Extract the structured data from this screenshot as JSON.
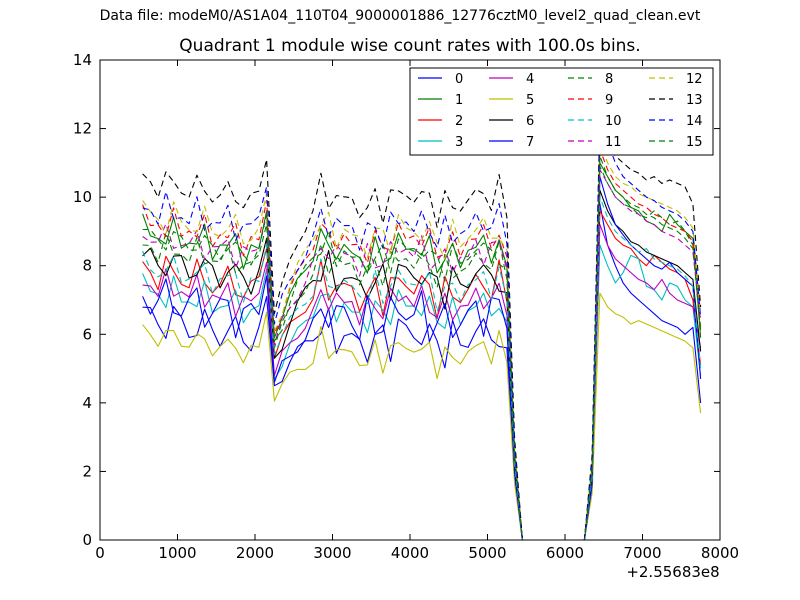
{
  "figure": {
    "suptitle": "Data file: modeM0/AS1A04_110T04_9000001886_12776cztM0_level2_quad_clean.evt"
  },
  "chart_data": {
    "type": "line",
    "title": "Quadrant 1 module wise count rates with 100.0s bins.",
    "xlabel": "",
    "ylabel": "",
    "x_offset_label": "+2.55683e8",
    "xlim": [
      0,
      8000
    ],
    "ylim": [
      0,
      14
    ],
    "xticks": [
      0,
      1000,
      2000,
      3000,
      4000,
      5000,
      6000,
      7000,
      8000
    ],
    "yticks": [
      0,
      2,
      4,
      6,
      8,
      10,
      12,
      14
    ],
    "legend_position": "top-right",
    "legend_columns": 4,
    "x": [
      550,
      650,
      750,
      850,
      950,
      1050,
      1150,
      1250,
      1350,
      1450,
      1550,
      1650,
      1750,
      1850,
      1950,
      2050,
      2150,
      2250,
      2350,
      2450,
      2550,
      2650,
      2750,
      2850,
      2950,
      3050,
      3150,
      3250,
      3350,
      3450,
      3550,
      3650,
      3750,
      3850,
      3950,
      4050,
      4150,
      4250,
      4350,
      4450,
      4550,
      4650,
      4750,
      4850,
      4950,
      5050,
      5150,
      5250,
      5350,
      5450,
      5550,
      5650,
      5750,
      5850,
      5950,
      6050,
      6150,
      6250,
      6350,
      6450,
      6550,
      6650,
      6750,
      6850,
      6950,
      7050,
      7150,
      7250,
      7350,
      7450,
      7550,
      7650,
      7750
    ],
    "gap_start_index": 49,
    "gap_end_index": 57,
    "series": [
      {
        "name": "0",
        "color": "#0000ff",
        "dash": false,
        "base": 5.9,
        "amp": 0.5,
        "phase": 0.3,
        "dip": 4.5,
        "flare": [
          9.8,
          8.6,
          8.0,
          7.5,
          7.2,
          7.0,
          6.8,
          6.6,
          6.4,
          6.3,
          6.2,
          6.0,
          6.2,
          4.0
        ]
      },
      {
        "name": "1",
        "color": "#008000",
        "dash": false,
        "base": 8.4,
        "amp": 0.35,
        "phase": 1.1,
        "dip": 5.9,
        "flare": [
          11.0,
          10.6,
          10.2,
          10.0,
          9.7,
          9.6,
          9.3,
          9.2,
          9.0,
          9.5,
          9.2,
          9.0,
          8.8,
          5.9
        ]
      },
      {
        "name": "2",
        "color": "#ff0000",
        "dash": false,
        "base": 7.3,
        "amp": 0.45,
        "phase": 2.0,
        "dip": 5.3,
        "flare": [
          9.6,
          9.2,
          8.8,
          8.6,
          8.5,
          8.2,
          8.0,
          8.3,
          8.1,
          7.9,
          7.8,
          7.6,
          7.0,
          5.1
        ]
      },
      {
        "name": "3",
        "color": "#00bfbf",
        "dash": false,
        "base": 6.7,
        "amp": 0.35,
        "phase": 0.7,
        "dip": 4.7,
        "flare": [
          8.6,
          8.0,
          7.5,
          7.8,
          8.3,
          8.2,
          7.4,
          7.3,
          7.0,
          7.5,
          7.4,
          7.0,
          6.8,
          4.8
        ]
      },
      {
        "name": "4",
        "color": "#bf00bf",
        "dash": false,
        "base": 6.9,
        "amp": 0.3,
        "phase": 2.6,
        "dip": 4.8,
        "flare": [
          9.2,
          8.6,
          8.2,
          8.0,
          7.8,
          7.6,
          7.5,
          7.3,
          7.6,
          7.2,
          7.0,
          6.9,
          6.8,
          5.6
        ]
      },
      {
        "name": "5",
        "color": "#bfbf00",
        "dash": false,
        "base": 5.45,
        "amp": 0.3,
        "phase": 1.7,
        "dip": 4.05,
        "flare": [
          7.2,
          6.8,
          6.6,
          6.5,
          6.3,
          6.4,
          6.3,
          6.2,
          6.1,
          6.0,
          5.9,
          5.8,
          5.6,
          3.7
        ]
      },
      {
        "name": "6",
        "color": "#000000",
        "dash": false,
        "base": 7.6,
        "amp": 0.4,
        "phase": 0.1,
        "dip": 5.3,
        "flare": [
          10.2,
          9.6,
          9.2,
          9.0,
          8.7,
          8.6,
          8.4,
          8.3,
          8.2,
          8.1,
          8.0,
          7.8,
          7.6,
          5.5
        ]
      },
      {
        "name": "7",
        "color": "#0000ff",
        "dash": false,
        "base": 6.5,
        "amp": 0.55,
        "phase": 3.0,
        "dip": 4.6,
        "flare": [
          10.6,
          9.8,
          9.2,
          8.9,
          8.6,
          8.4,
          8.2,
          8.0,
          7.9,
          8.1,
          7.8,
          7.6,
          7.4,
          4.7
        ]
      },
      {
        "name": "8",
        "color": "#008000",
        "dash": true,
        "base": 8.0,
        "amp": 0.3,
        "phase": 2.2,
        "dip": 5.6,
        "flare": [
          10.9,
          10.4,
          10.0,
          9.8,
          9.7,
          9.5,
          9.4,
          9.6,
          9.4,
          9.2,
          9.3,
          9.0,
          8.6,
          6.2
        ]
      },
      {
        "name": "9",
        "color": "#ff0000",
        "dash": true,
        "base": 8.7,
        "amp": 0.3,
        "phase": 0.9,
        "dip": 6.0,
        "flare": [
          11.4,
          10.8,
          10.4,
          10.2,
          10.0,
          9.8,
          9.7,
          9.5,
          9.4,
          9.2,
          9.1,
          9.0,
          8.7,
          6.0
        ]
      },
      {
        "name": "10",
        "color": "#00bfbf",
        "dash": true,
        "base": 7.4,
        "amp": 0.35,
        "phase": 1.4,
        "dip": 5.4,
        "flare": [
          10.0,
          9.4,
          9.0,
          8.8,
          8.6,
          8.4,
          8.5,
          8.2,
          8.1,
          8.0,
          7.9,
          7.7,
          7.4,
          5.0
        ]
      },
      {
        "name": "11",
        "color": "#bf00bf",
        "dash": true,
        "base": 8.3,
        "amp": 0.3,
        "phase": 2.9,
        "dip": 5.7,
        "flare": [
          10.8,
          10.4,
          10.0,
          9.8,
          9.6,
          9.5,
          9.3,
          9.2,
          9.0,
          8.9,
          8.8,
          8.6,
          8.4,
          6.4
        ]
      },
      {
        "name": "12",
        "color": "#bfbf00",
        "dash": true,
        "base": 8.9,
        "amp": 0.4,
        "phase": 0.5,
        "dip": 6.1,
        "flare": [
          11.6,
          11.0,
          10.6,
          10.4,
          10.3,
          10.1,
          10.0,
          9.9,
          9.8,
          9.7,
          9.6,
          9.4,
          9.1,
          6.6
        ]
      },
      {
        "name": "13",
        "color": "#000000",
        "dash": true,
        "base": 9.9,
        "amp": 0.35,
        "phase": 1.9,
        "dip": 6.6,
        "flare": [
          12.2,
          11.6,
          11.2,
          11.0,
          10.8,
          10.7,
          10.5,
          10.6,
          10.4,
          10.5,
          10.4,
          10.3,
          9.8,
          6.8
        ]
      },
      {
        "name": "14",
        "color": "#0000ff",
        "dash": true,
        "base": 9.1,
        "amp": 0.35,
        "phase": 2.4,
        "dip": 6.3,
        "flare": [
          12.4,
          11.6,
          11.0,
          10.6,
          10.4,
          10.2,
          10.0,
          9.9,
          9.7,
          9.6,
          9.5,
          9.3,
          9.0,
          6.5
        ]
      },
      {
        "name": "15",
        "color": "#008000",
        "dash": true,
        "base": 8.3,
        "amp": 0.3,
        "phase": 0.2,
        "dip": 5.8,
        "flare": [
          11.2,
          10.6,
          10.2,
          10.0,
          9.8,
          9.7,
          9.5,
          9.4,
          9.2,
          9.1,
          9.0,
          8.8,
          8.5,
          6.1
        ]
      }
    ]
  }
}
